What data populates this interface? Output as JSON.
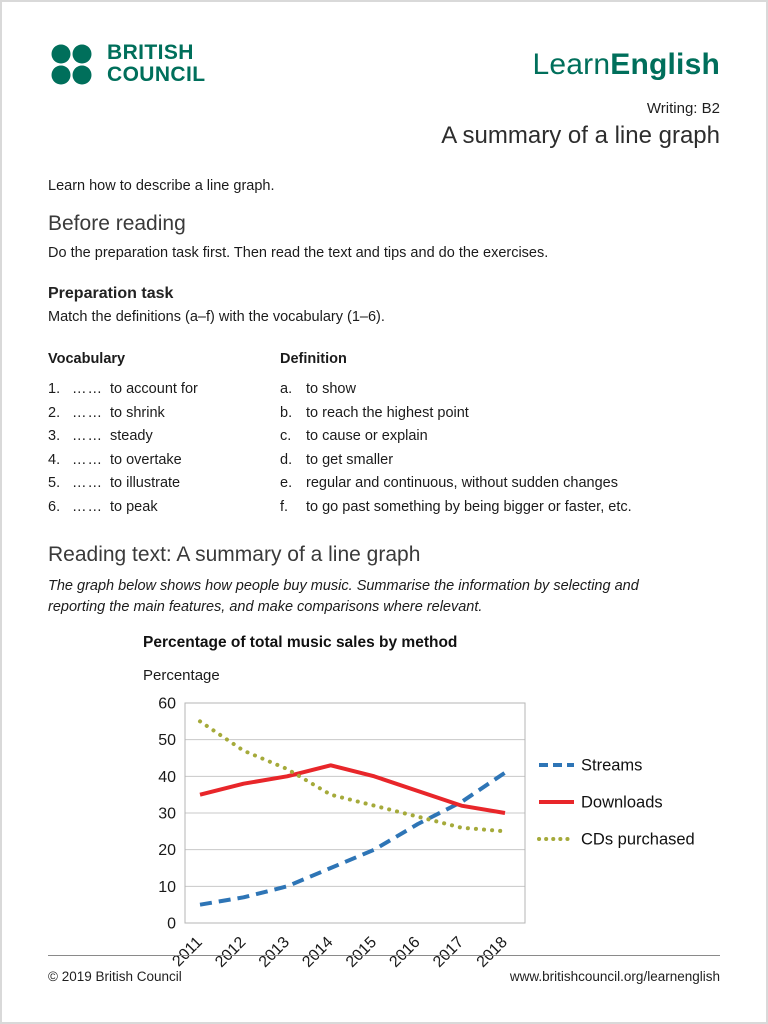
{
  "colors": {
    "brand_green": "#006f5b",
    "streams_blue": "#2e75b6",
    "downloads_red": "#e8262a",
    "cds_olive": "#a5aa3a"
  },
  "header": {
    "logo_line1": "BRITISH",
    "logo_line2": "COUNCIL",
    "brand_learn": "Learn",
    "brand_english": "English",
    "level": "Writing: B2",
    "title": "A summary of a line graph"
  },
  "intro": "Learn how to describe a line graph.",
  "before_reading": {
    "heading": "Before reading",
    "text": "Do the preparation task first. Then read the text and tips and do the exercises."
  },
  "preparation": {
    "heading": "Preparation task",
    "instruction": "Match the definitions (a–f) with the vocabulary (1–6).",
    "vocab_header": "Vocabulary",
    "def_header": "Definition",
    "vocab": [
      {
        "num": "1.",
        "blank": "……",
        "term": "to account for"
      },
      {
        "num": "2.",
        "blank": "……",
        "term": "to shrink"
      },
      {
        "num": "3.",
        "blank": "……",
        "term": "steady"
      },
      {
        "num": "4.",
        "blank": "……",
        "term": "to overtake"
      },
      {
        "num": "5.",
        "blank": "……",
        "term": "to illustrate"
      },
      {
        "num": "6.",
        "blank": "……",
        "term": "to peak"
      }
    ],
    "defs": [
      {
        "letter": "a.",
        "text": "to show"
      },
      {
        "letter": "b.",
        "text": "to reach the highest point"
      },
      {
        "letter": "c.",
        "text": "to cause or explain"
      },
      {
        "letter": "d.",
        "text": "to get smaller"
      },
      {
        "letter": "e.",
        "text": "regular and continuous, without sudden changes"
      },
      {
        "letter": "f.",
        "text": "to go past something by being bigger or faster, etc."
      }
    ]
  },
  "reading": {
    "heading": "Reading text: A summary of a line graph",
    "prompt": "The graph below shows how people buy music. Summarise the information by selecting and reporting the main features, and make comparisons where relevant."
  },
  "chart_data": {
    "type": "line",
    "title": "Percentage of total music sales by method",
    "ylabel": "Percentage",
    "categories": [
      "2011",
      "2012",
      "2013",
      "2014",
      "2015",
      "2016",
      "2017",
      "2018"
    ],
    "ylim": [
      0,
      60
    ],
    "ytick_step": 10,
    "grid": "horizontal",
    "legend_position": "right",
    "series": [
      {
        "name": "Streams",
        "style": "dashed",
        "color": "#2e75b6",
        "values": [
          5,
          7,
          10,
          15,
          20,
          27,
          33,
          41
        ]
      },
      {
        "name": "Downloads",
        "style": "solid",
        "color": "#e8262a",
        "values": [
          35,
          38,
          40,
          43,
          40,
          36,
          32,
          30
        ]
      },
      {
        "name": "CDs purchased",
        "style": "dotted",
        "color": "#a5aa3a",
        "values": [
          55,
          47,
          42,
          35,
          32,
          29,
          26,
          25
        ]
      }
    ]
  },
  "footer": {
    "copyright": "© 2019 British Council",
    "url": "www.britishcouncil.org/learnenglish"
  }
}
